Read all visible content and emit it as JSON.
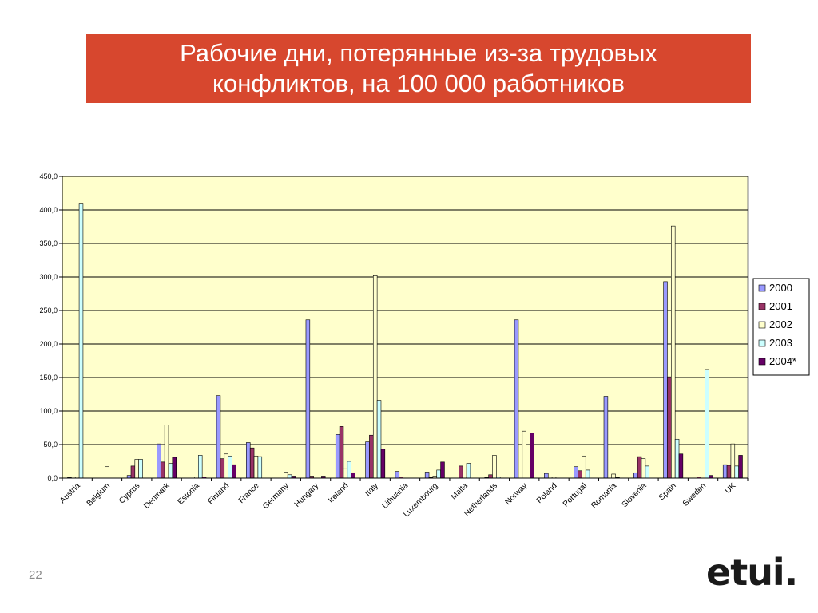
{
  "slide": {
    "title": "Рабочие дни, потерянные из-за трудовых конфликтов, на 100 000 работников",
    "page_number": "22",
    "logo_text": "etui."
  },
  "chart_data": {
    "type": "bar",
    "title": "",
    "xlabel": "",
    "ylabel": "",
    "ylim": [
      0,
      450
    ],
    "yticks": [
      "0,0",
      "50,0",
      "100,0",
      "150,0",
      "200,0",
      "250,0",
      "300,0",
      "350,0",
      "400,0",
      "450,0"
    ],
    "grid": true,
    "legend_position": "right",
    "plot_background": "#ffffcc",
    "categories": [
      "Austria",
      "Belgium",
      "Cyprus",
      "Denmark",
      "Estonia",
      "Finland",
      "France",
      "Germany",
      "Hungary",
      "Ireland",
      "Italy",
      "Lithuania",
      "Luxembourg",
      "Malta",
      "Netherlands",
      "Norway",
      "Poland",
      "Portugal",
      "Romania",
      "Slovenia",
      "Spain",
      "Sweden",
      "UK"
    ],
    "series": [
      {
        "name": "2000",
        "color": "#9999ff",
        "values": [
          1,
          0,
          4,
          51,
          0,
          123,
          53,
          0,
          236,
          65,
          54,
          10,
          9,
          0,
          1,
          236,
          7,
          17,
          122,
          8,
          293,
          0,
          20
        ]
      },
      {
        "name": "2001",
        "color": "#993366",
        "values": [
          0,
          0,
          18,
          24,
          0,
          29,
          45,
          0,
          3,
          77,
          64,
          2,
          1,
          18,
          5,
          0,
          0,
          11,
          0,
          32,
          151,
          2,
          19
        ]
      },
      {
        "name": "2002",
        "color": "#ffffcc",
        "values": [
          2,
          17,
          28,
          79,
          2,
          36,
          33,
          9,
          0,
          14,
          302,
          0,
          3,
          2,
          34,
          70,
          2,
          33,
          6,
          29,
          376,
          0,
          51
        ]
      },
      {
        "name": "2003",
        "color": "#ccffff",
        "values": [
          410,
          0,
          28,
          22,
          34,
          33,
          32,
          5,
          0,
          25,
          116,
          0,
          12,
          22,
          2,
          0,
          0,
          12,
          1,
          18,
          58,
          162,
          18
        ]
      },
      {
        "name": "2004*",
        "color": "#660066",
        "values": [
          0,
          0,
          0,
          31,
          2,
          20,
          0,
          3,
          3,
          8,
          43,
          0,
          24,
          0,
          0,
          67,
          0,
          0,
          0,
          0,
          36,
          4,
          34
        ]
      }
    ]
  }
}
